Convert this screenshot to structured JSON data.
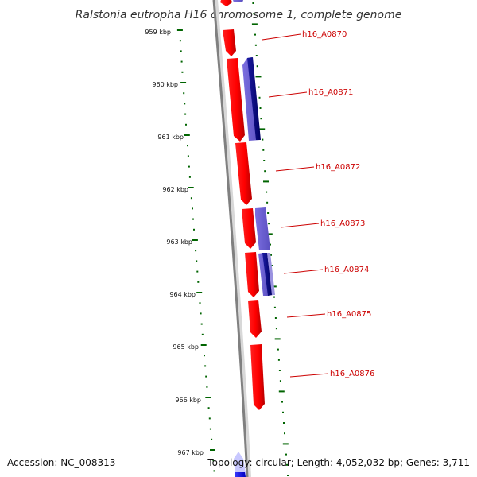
{
  "title": "Ralstonia eutropha H16 chromosome 1, complete genome",
  "footer": {
    "accession": "Accession: NC_008313",
    "summary": "Topology: circular; Length: 4,052,032 bp; Genes: 3,711"
  },
  "ruler": {
    "ticks": [
      "959 kbp",
      "960 kbp",
      "961 kbp",
      "962 kbp",
      "963 kbp",
      "964 kbp",
      "965 kbp",
      "966 kbp",
      "967 kbp"
    ]
  },
  "genes": [
    {
      "id": "h16_A0870",
      "label": "h16_A0870"
    },
    {
      "id": "h16_A0871",
      "label": "h16_A0871"
    },
    {
      "id": "h16_A0872",
      "label": "h16_A0872"
    },
    {
      "id": "h16_A0873",
      "label": "h16_A0873"
    },
    {
      "id": "h16_A0874",
      "label": "h16_A0874"
    },
    {
      "id": "h16_A0875",
      "label": "h16_A0875"
    },
    {
      "id": "h16_A0876",
      "label": "h16_A0876"
    }
  ],
  "colors": {
    "backbone": "#808080",
    "forward_gene": "#ff0000",
    "reverse_gene": "#6a5acd",
    "reverse_gene_dark": "#00008b",
    "ruler": "#006400",
    "label": "#cc0000",
    "blue_feature": "#0000ff"
  }
}
